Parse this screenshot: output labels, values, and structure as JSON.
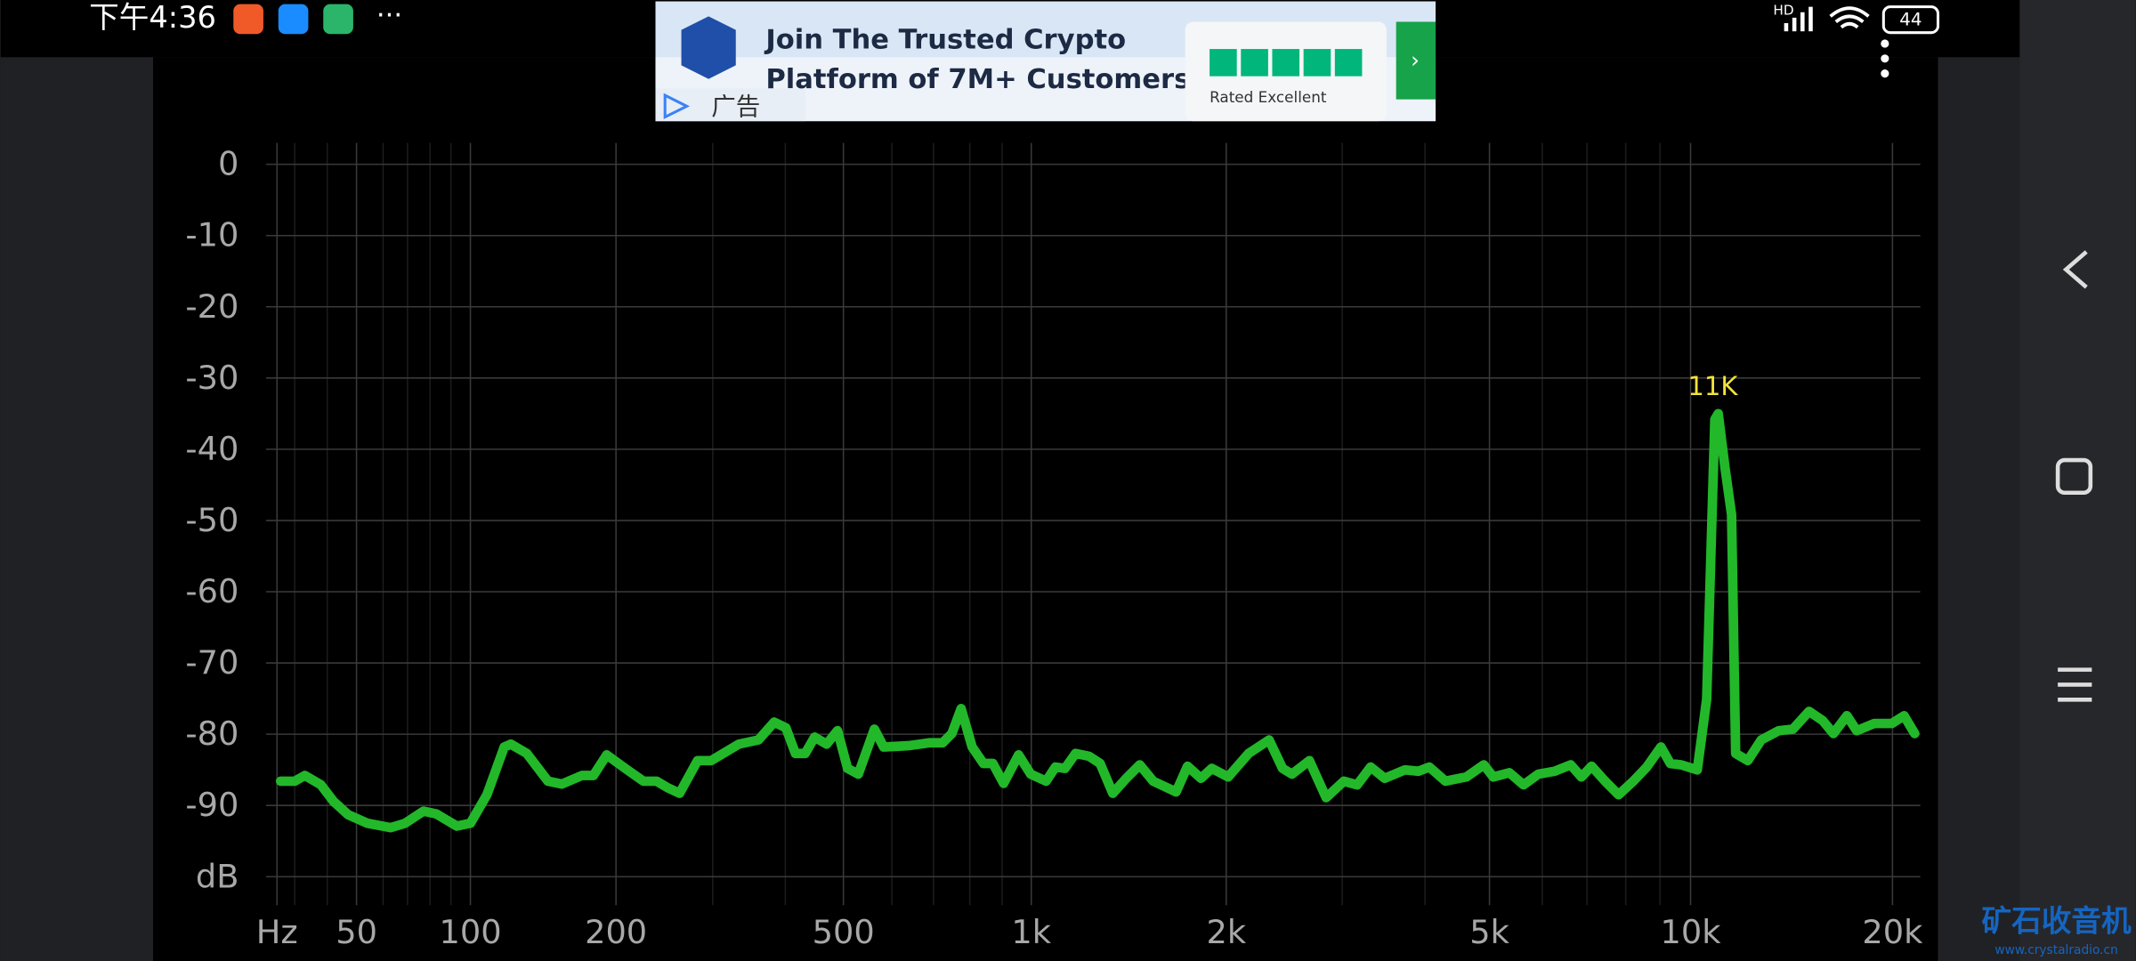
{
  "status_bar": {
    "time": "下午4:36",
    "more": "···",
    "network": "HD",
    "battery": "44"
  },
  "ad": {
    "line1": "Join The Trusted Crypto",
    "line2": "Platform of 7M+ Customers",
    "rating": "Rated Excellent",
    "label": "广告"
  },
  "chart_data": {
    "type": "line",
    "xscale": "log",
    "grid": true,
    "xlim": [
      25,
      22000
    ],
    "ylim": [
      -104,
      3
    ],
    "xticks": [
      {
        "value": 25,
        "label": "Hz"
      },
      50,
      100,
      200,
      500,
      {
        "value": 1000,
        "label": "1k"
      },
      {
        "value": 2000,
        "label": "2k"
      },
      {
        "value": 5000,
        "label": "5k"
      },
      {
        "value": 10000,
        "label": "10k"
      },
      {
        "value": 20000,
        "label": "20k"
      }
    ],
    "xminorticks": [
      30,
      40,
      60,
      70,
      80,
      90,
      300,
      400,
      600,
      700,
      800,
      900,
      3000,
      4000,
      6000,
      7000,
      8000,
      9000
    ],
    "yticks": [
      0,
      -10,
      -20,
      -30,
      -40,
      -50,
      -60,
      -70,
      -80,
      -90,
      {
        "value": -100,
        "label": "dB"
      }
    ],
    "x": [
      26,
      30,
      33,
      38,
      42,
      47,
      54,
      63,
      69,
      77,
      83,
      93,
      100,
      109,
      119,
      123,
      133,
      147,
      157,
      172,
      181,
      192,
      210,
      225,
      238,
      249,
      262,
      282,
      298,
      333,
      360,
      383,
      401,
      416,
      432,
      448,
      469,
      489,
      508,
      529,
      562,
      582,
      639,
      689,
      724,
      749,
      775,
      807,
      841,
      870,
      905,
      955,
      998,
      1055,
      1091,
      1129,
      1173,
      1231,
      1280,
      1339,
      1405,
      1474,
      1546,
      1676,
      1745,
      1830,
      1901,
      2013,
      2164,
      2324,
      2436,
      2518,
      2676,
      2837,
      3017,
      3161,
      3313,
      3478,
      3732,
      3910,
      4060,
      4293,
      4615,
      4903,
      5066,
      5356,
      5624,
      5920,
      6260,
      6618,
      6869,
      7112,
      7450,
      7804,
      8211,
      8602,
      9030,
      9327,
      9681,
      10232,
      10570,
      10868,
      10995,
      11252,
      11515,
      11675,
      12173,
      12748,
      13539,
      14211,
      15022,
      15739,
      16329,
      17103,
      17693,
      18793,
      19955,
      20808,
      21583
    ],
    "series": [
      {
        "color": "#22b82a",
        "values": [
          -86.6,
          -86.6,
          -85.8,
          -87.1,
          -89.4,
          -91.3,
          -92.5,
          -93.1,
          -92.5,
          -90.8,
          -91.2,
          -92.9,
          -92.5,
          -88.5,
          -81.8,
          -81.4,
          -82.7,
          -86.6,
          -87,
          -85.8,
          -85.8,
          -82.9,
          -85,
          -86.6,
          -86.6,
          -87.5,
          -88.3,
          -83.7,
          -83.7,
          -81.4,
          -80.8,
          -78.3,
          -79.1,
          -82.7,
          -82.7,
          -80.4,
          -81.4,
          -79.5,
          -84.8,
          -85.6,
          -79.3,
          -81.8,
          -81.6,
          -81.2,
          -81.2,
          -79.9,
          -76.4,
          -81.8,
          -84.1,
          -84.1,
          -86.9,
          -82.9,
          -85.6,
          -86.6,
          -84.6,
          -84.8,
          -82.7,
          -83.1,
          -84.1,
          -88.3,
          -86.2,
          -84.3,
          -86.6,
          -88.1,
          -84.5,
          -86.2,
          -84.8,
          -86,
          -82.7,
          -80.8,
          -84.8,
          -85.6,
          -83.7,
          -88.9,
          -86.6,
          -87.1,
          -84.6,
          -86.2,
          -85,
          -85.2,
          -84.6,
          -86.6,
          -86,
          -84.3,
          -86,
          -85.4,
          -87.1,
          -85.6,
          -85.2,
          -84.3,
          -86,
          -84.5,
          -86.6,
          -88.5,
          -86.6,
          -84.6,
          -81.8,
          -84.1,
          -84.3,
          -85,
          -75.1,
          -35.8,
          -35,
          -42.5,
          -49.2,
          -82.7,
          -83.7,
          -80.8,
          -79.5,
          -79.3,
          -76.8,
          -78.1,
          -79.9,
          -77.4,
          -79.5,
          -78.5,
          -78.5,
          -77.4,
          -79.9
        ]
      }
    ],
    "annotations": [
      {
        "text": "11K"
      }
    ]
  },
  "watermark": {
    "title": "矿石收音机",
    "url": "www.crystalradio.cn"
  }
}
